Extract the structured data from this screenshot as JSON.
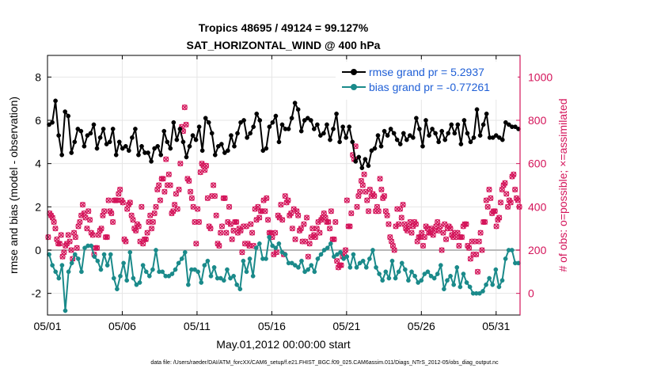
{
  "chart_data": {
    "type": "line",
    "title": [
      "Tropics 48695 / 49124 = 99.127%",
      "SAT_HORIZONTAL_WIND @ 400 hPa"
    ],
    "xlabel": "May.01,2012 00:00:00 start",
    "ylabel": "rmse and bias (model - observation)",
    "ylabel_right": "# of obs: o=possible; ×=assimilated",
    "xlim": [
      0,
      31.6
    ],
    "ylim": [
      -3,
      9
    ],
    "ylim_right": [
      -100,
      1100
    ],
    "x_ticks": [
      0,
      5,
      10,
      15,
      20,
      25,
      30
    ],
    "x_tick_labels": [
      "05/01",
      "05/06",
      "05/11",
      "05/16",
      "05/21",
      "05/26",
      "05/31"
    ],
    "y_ticks": [
      -2,
      0,
      2,
      4,
      6,
      8
    ],
    "y_ticks_right": [
      0,
      200,
      400,
      600,
      800,
      1000
    ],
    "footer": "data file: /Users/raeder/DAI/ATM_forcXX/CAM6_setup/f.e21.FHIST_BGC.f09_025.CAM6assim.011/Diags_NTrS_2012-05/obs_diag_output.nc",
    "colors": {
      "rmse": "#000000",
      "bias": "#1a8a8a",
      "obs": "#d4145a",
      "zero": "#b8b8b8"
    },
    "series": [
      {
        "name": "rmse",
        "legend": "rmse grand pr = 5.2937",
        "axis": "left",
        "values": [
          5.8,
          5.9,
          6.9,
          5.3,
          4.4,
          6.4,
          6.2,
          4.5,
          5.0,
          5.6,
          5.5,
          4.8,
          5.3,
          5.4,
          5.8,
          4.7,
          5.2,
          5.6,
          4.9,
          5.0,
          5.6,
          4.4,
          5.0,
          4.7,
          4.8,
          4.6,
          5.2,
          5.6,
          4.4,
          4.8,
          4.5,
          4.5,
          4.1,
          4.7,
          4.8,
          4.4,
          5.5,
          5.0,
          4.7,
          5.9,
          5.1,
          5.6,
          5.0,
          4.3,
          4.8,
          5.3,
          5.1,
          5.7,
          4.6,
          6.1,
          5.9,
          5.4,
          4.4,
          4.8,
          4.9,
          4.5,
          4.6,
          5.3,
          4.8,
          5.4,
          5.9,
          6.0,
          5.2,
          5.4,
          5.7,
          6.3,
          6.0,
          4.6,
          4.7,
          5.7,
          5.9,
          6.2,
          5.0,
          5.8,
          5.6,
          5.6,
          6.1,
          6.8,
          6.5,
          5.5,
          6.0,
          6.1,
          6.0,
          5.6,
          5.8,
          5.3,
          5.4,
          5.8,
          5.1,
          5.6,
          6.3,
          5.0,
          5.7,
          5.2,
          5.7,
          5.0,
          4.1,
          4.3,
          3.8,
          4.2,
          3.9,
          4.6,
          4.7,
          5.3,
          4.8,
          5.5,
          5.3,
          5.6,
          5.4,
          5.1,
          4.9,
          5.4,
          5.1,
          5.3,
          5.2,
          6.1,
          5.6,
          4.8,
          6.0,
          5.3,
          5.6,
          5.4,
          5.0,
          5.5,
          5.1,
          5.4,
          5.8,
          5.4,
          5.8,
          4.9,
          6.0,
          5.4,
          5.0,
          5.2,
          6.5,
          5.3,
          5.8,
          6.3,
          5.2,
          5.2,
          5.3,
          5.2,
          5.1,
          5.9,
          5.8,
          5.7,
          5.7,
          5.6
        ]
      },
      {
        "name": "bias",
        "legend": "bias grand pr = -0.77261",
        "axis": "left",
        "values": [
          -0.2,
          -0.7,
          -1.0,
          -1.3,
          -0.7,
          -2.8,
          -1.0,
          -0.6,
          -0.2,
          -0.4,
          -1.0,
          0.1,
          0.2,
          0.2,
          -0.3,
          -0.5,
          -0.9,
          -0.2,
          -0.7,
          -0.2,
          -1.3,
          -1.8,
          -1.2,
          -0.6,
          -1.4,
          -0.1,
          -1.3,
          -1.6,
          -1.5,
          -0.7,
          -1.0,
          -1.2,
          -0.9,
          0.0,
          -1.0,
          -1.0,
          -1.2,
          -1.2,
          -1.1,
          -0.9,
          -0.6,
          -0.4,
          -0.1,
          -1.6,
          -0.9,
          -0.9,
          -1.0,
          -1.5,
          -0.7,
          -0.5,
          -1.2,
          -0.8,
          -1.3,
          -1.3,
          -1.4,
          -0.9,
          -1.3,
          -1.2,
          -1.6,
          -1.8,
          -0.5,
          -1.0,
          -0.4,
          -1.2,
          0.1,
          0.3,
          -0.4,
          -0.4,
          0.6,
          0.2,
          0.1,
          0.3,
          -0.1,
          -0.2,
          -0.6,
          -0.6,
          -0.7,
          -0.8,
          -0.5,
          -1.0,
          -0.9,
          -0.7,
          -1.0,
          -0.4,
          -0.2,
          0.0,
          0.1,
          0.3,
          -0.3,
          -0.2,
          -0.1,
          -0.4,
          -0.3,
          -0.8,
          -0.2,
          -0.8,
          -0.6,
          -0.5,
          -0.8,
          -0.4,
          0.0,
          -0.8,
          -1.1,
          -1.4,
          -1.0,
          -1.3,
          -0.5,
          -1.3,
          -1.0,
          -0.6,
          -0.9,
          -1.4,
          -1.0,
          -1.2,
          -1.5,
          -1.4,
          -1.1,
          -1.0,
          -1.2,
          -1.3,
          -1.1,
          -0.7,
          -1.8,
          -1.4,
          -1.2,
          -1.6,
          -0.8,
          -1.7,
          -1.1,
          -1.5,
          -1.7,
          -2.0,
          -2.0,
          -2.0,
          -1.9,
          -1.6,
          -1.3,
          -1.6,
          -0.9,
          -1.7,
          -1.4,
          -0.4,
          0.0,
          0.0,
          -0.6,
          -0.6
        ]
      },
      {
        "name": "possible",
        "axis": "right",
        "values": [
          260,
          370,
          360,
          350,
          330,
          300,
          250,
          230,
          230,
          270,
          170,
          190,
          220,
          230,
          270,
          240,
          200,
          160,
          280,
          260,
          210,
          310,
          330,
          360,
          410,
          370,
          350,
          300,
          380,
          340,
          280,
          270,
          180,
          210,
          210,
          270,
          290,
          300,
          360,
          380,
          260,
          260,
          430,
          380,
          370,
          330,
          430,
          430,
          430,
          460,
          480,
          430,
          420,
          250,
          240,
          390,
          410,
          420,
          360,
          340,
          300,
          290,
          320,
          310,
          240,
          400,
          230,
          250,
          250,
          280,
          330,
          360,
          300,
          330,
          370,
          400,
          480,
          500,
          430,
          530,
          530,
          470,
          620,
          500,
          550,
          500,
          370,
          380,
          410,
          460,
          390,
          480,
          600,
          770,
          750,
          860,
          780,
          530,
          520,
          470,
          440,
          400,
          330,
          230,
          390,
          330,
          560,
          600,
          590,
          570,
          590,
          440,
          310,
          300,
          450,
          500,
          450,
          360,
          230,
          220,
          280,
          310,
          440,
          440,
          280,
          330,
          400,
          320,
          250,
          290,
          330,
          330,
          280,
          300,
          290,
          190,
          310,
          230,
          310,
          230,
          220,
          320,
          280,
          220,
          390,
          340,
          400,
          350,
          380,
          380,
          430,
          380,
          440,
          340,
          280,
          280,
          260,
          180,
          280,
          190,
          360,
          350,
          410,
          340,
          180,
          450,
          420,
          430,
          360,
          370,
          300,
          390,
          250,
          380,
          360,
          290,
          300,
          240,
          320,
          240,
          350,
          170,
          230,
          260,
          300,
          270,
          260,
          300,
          330,
          280,
          340,
          350,
          370,
          350,
          330,
          330,
          300,
          380,
          250,
          250,
          330,
          150,
          120,
          130,
          130,
          170,
          180,
          200,
          430,
          310,
          310,
          370,
          640,
          620,
          680,
          400,
          450,
          470,
          520,
          500,
          550,
          470,
          430,
          380,
          480,
          450,
          460,
          450,
          380,
          400,
          380,
          530,
          480,
          440,
          450,
          380,
          360,
          320,
          260,
          240,
          220,
          200,
          310,
          390,
          320,
          390,
          350,
          410,
          320,
          300,
          290,
          310,
          330,
          280,
          310,
          330,
          320,
          240,
          260,
          260,
          280,
          220,
          260,
          310,
          300,
          280,
          280,
          300,
          270,
          290,
          310,
          330,
          290,
          310,
          200,
          280,
          320,
          250,
          300,
          310,
          300,
          270,
          260,
          280,
          260,
          280,
          220,
          260,
          260,
          310,
          320,
          320,
          220,
          210,
          160,
          240,
          180,
          240,
          180,
          100,
          240,
          280,
          200,
          330,
          330,
          430,
          400,
          480,
          440,
          370,
          380,
          380,
          310,
          340,
          350,
          420,
          480,
          500,
          510,
          460,
          400,
          430,
          420,
          540,
          550,
          480,
          440,
          430,
          400
        ]
      },
      {
        "name": "assimilated",
        "axis": "right",
        "values": [
          260,
          370,
          360,
          350,
          330,
          300,
          250,
          230,
          230,
          270,
          170,
          190,
          220,
          230,
          270,
          240,
          200,
          160,
          280,
          260,
          210,
          310,
          330,
          360,
          410,
          370,
          350,
          300,
          380,
          340,
          280,
          270,
          180,
          210,
          210,
          270,
          290,
          300,
          360,
          380,
          260,
          260,
          430,
          380,
          370,
          330,
          430,
          430,
          430,
          460,
          480,
          430,
          420,
          250,
          240,
          390,
          410,
          420,
          360,
          340,
          300,
          290,
          320,
          310,
          240,
          400,
          230,
          250,
          250,
          280,
          330,
          360,
          300,
          330,
          370,
          400,
          480,
          500,
          430,
          530,
          530,
          470,
          620,
          500,
          550,
          500,
          370,
          380,
          410,
          460,
          390,
          480,
          600,
          770,
          750,
          860,
          780,
          530,
          520,
          470,
          440,
          400,
          330,
          230,
          390,
          330,
          560,
          600,
          590,
          570,
          590,
          440,
          310,
          300,
          450,
          500,
          450,
          360,
          230,
          220,
          280,
          310,
          440,
          440,
          280,
          330,
          400,
          320,
          250,
          290,
          330,
          330,
          280,
          300,
          290,
          190,
          310,
          230,
          310,
          230,
          220,
          320,
          280,
          220,
          390,
          340,
          400,
          350,
          380,
          380,
          430,
          380,
          440,
          340,
          280,
          280,
          260,
          180,
          280,
          190,
          360,
          350,
          410,
          340,
          180,
          450,
          420,
          430,
          360,
          370,
          300,
          390,
          250,
          380,
          360,
          290,
          300,
          240,
          320,
          240,
          350,
          170,
          230,
          260,
          300,
          270,
          260,
          300,
          330,
          280,
          340,
          350,
          370,
          350,
          330,
          330,
          300,
          380,
          250,
          250,
          330,
          150,
          120,
          130,
          130,
          170,
          180,
          200,
          430,
          310,
          310,
          370,
          640,
          620,
          680,
          400,
          450,
          470,
          520,
          500,
          550,
          470,
          430,
          380,
          480,
          450,
          460,
          450,
          380,
          400,
          380,
          530,
          480,
          440,
          450,
          380,
          360,
          320,
          260,
          240,
          220,
          200,
          310,
          390,
          320,
          390,
          350,
          410,
          320,
          300,
          290,
          310,
          330,
          280,
          310,
          330,
          320,
          240,
          260,
          260,
          280,
          220,
          260,
          310,
          300,
          280,
          280,
          300,
          270,
          290,
          310,
          330,
          290,
          310,
          200,
          280,
          320,
          250,
          300,
          310,
          300,
          270,
          260,
          280,
          260,
          280,
          220,
          260,
          260,
          310,
          320,
          320,
          220,
          210,
          160,
          240,
          180,
          240,
          180,
          100,
          240,
          280,
          200,
          330,
          330,
          430,
          400,
          480,
          440,
          370,
          380,
          380,
          310,
          340,
          350,
          420,
          480,
          500,
          510,
          460,
          400,
          430,
          420,
          540,
          550,
          480,
          440,
          430,
          400
        ]
      }
    ]
  }
}
